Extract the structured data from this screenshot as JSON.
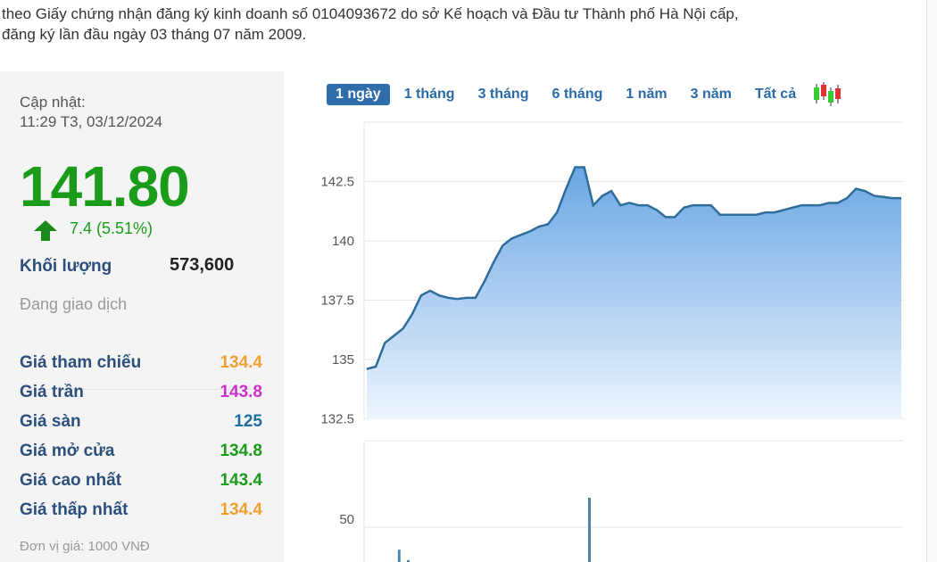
{
  "intro": {
    "line1": "theo Giấy chứng nhận đăng ký kinh doanh số 0104093672 do sở Kế hoạch và Đầu tư Thành phố Hà Nội cấp,",
    "line2": "đăng ký lần đầu ngày 03 tháng 07 năm 2009."
  },
  "quote": {
    "update_label": "Cập nhật:",
    "update_time": "11:29 T3, 03/12/2024",
    "price": "141.80",
    "change": "7.4 (5.51%)",
    "change_direction": "up",
    "volume_label": "Khối lượng",
    "volume": "573,600",
    "status": "Đang giao dịch",
    "rows": [
      {
        "label": "Giá tham chiếu",
        "value": "134.4",
        "color": "#f0a030"
      },
      {
        "label": "Giá trần",
        "value": "143.8",
        "color": "#d02fd0"
      },
      {
        "label": "Giá sàn",
        "value": "125",
        "color": "#1e6e9e"
      },
      {
        "label": "Giá mở cửa",
        "value": "134.8",
        "color": "#1a9b1a"
      },
      {
        "label": "Giá cao nhất",
        "value": "143.4",
        "color": "#1a9b1a"
      },
      {
        "label": "Giá thấp nhất",
        "value": "134.4",
        "color": "#f0a030"
      }
    ],
    "unit": "Đơn vị giá: 1000 VNĐ"
  },
  "tabs": [
    {
      "label": "1 ngày",
      "active": true
    },
    {
      "label": "1 tháng"
    },
    {
      "label": "3 tháng"
    },
    {
      "label": "6 tháng"
    },
    {
      "label": "1 năm"
    },
    {
      "label": "3 năm"
    },
    {
      "label": "Tất cả"
    }
  ],
  "candlestick_icon": "candlestick-chart-icon",
  "chart_data": [
    {
      "type": "area",
      "ylim": [
        131.8,
        145
      ],
      "yticks": [
        "132.5",
        "135",
        "137.5",
        "140",
        "142.5"
      ],
      "grid": true,
      "color": "#2f6e9a",
      "fill": "#7fb3e8",
      "values": [
        134.6,
        134.7,
        135.7,
        136,
        136.3,
        136.9,
        137.7,
        137.9,
        137.7,
        137.6,
        137.55,
        137.6,
        137.6,
        138.3,
        139.1,
        139.8,
        140.1,
        140.25,
        140.4,
        140.6,
        140.7,
        141.2,
        142.2,
        143.1,
        143.1,
        141.5,
        141.9,
        142.1,
        141.5,
        141.6,
        141.5,
        141.5,
        141.3,
        141.0,
        141.0,
        141.4,
        141.5,
        141.5,
        141.5,
        141.1,
        141.1,
        141.1,
        141.1,
        141.1,
        141.2,
        141.2,
        141.3,
        141.4,
        141.5,
        141.5,
        141.5,
        141.6,
        141.6,
        141.8,
        142.2,
        142.1,
        141.9,
        141.85,
        141.8,
        141.8
      ]
    },
    {
      "type": "bar",
      "yticks": [
        "50"
      ],
      "grid": true,
      "color": "#4a86a8",
      "bars": [
        {
          "index": 2,
          "value": 37
        },
        {
          "index": 3,
          "value": 31
        },
        {
          "index": 23,
          "value": 67
        }
      ]
    }
  ]
}
